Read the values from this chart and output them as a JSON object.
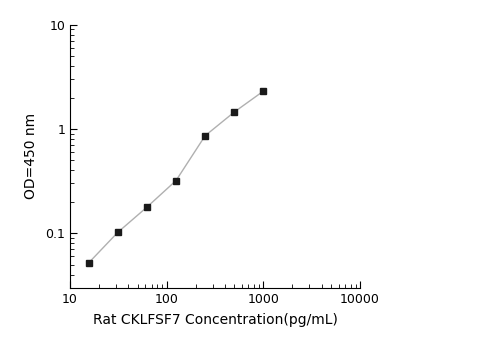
{
  "x_values": [
    15.6,
    31.2,
    62.5,
    125,
    250,
    500,
    1000
  ],
  "y_values": [
    0.052,
    0.102,
    0.178,
    0.32,
    0.86,
    1.45,
    2.3
  ],
  "xlabel": "Rat CKLFSF7 Concentration(pg/mL)",
  "ylabel": "OD=450 nm",
  "xlim": [
    10,
    10000
  ],
  "ylim": [
    0.03,
    10
  ],
  "xticks": [
    10,
    100,
    1000,
    10000
  ],
  "yticks": [
    0.1,
    1,
    10
  ],
  "line_color": "#b0b0b0",
  "marker_color": "#1a1a1a",
  "background_color": "#ffffff",
  "marker": "s",
  "marker_size": 5,
  "line_width": 1.0,
  "xlabel_fontsize": 10,
  "ylabel_fontsize": 10,
  "tick_fontsize": 9
}
